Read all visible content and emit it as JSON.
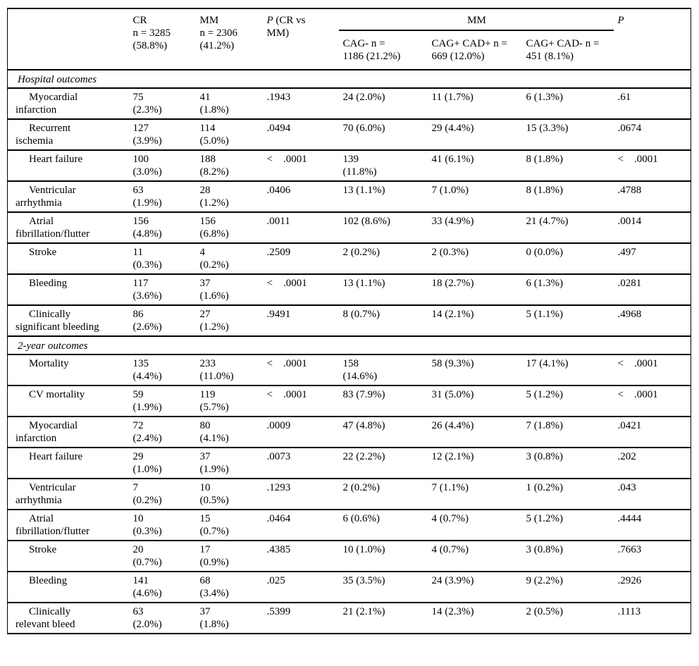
{
  "table": {
    "header": {
      "col_cr": "CR\nn = 3285\n(58.8%)",
      "col_mm": "MM\nn = 2306\n(41.2%)",
      "col_p1_italic": "P",
      "col_p1_rest": " (CR vs\nMM)",
      "group_mm": "MM",
      "col_cag_neg": "CAG- n =\n1186 (21.2%)",
      "col_cag_pos_cad_pos": "CAG+ CAD+ n =\n669 (12.0%)",
      "col_cag_pos_cad_neg": "CAG+ CAD- n =\n451 (8.1%)",
      "col_p2_italic": "P"
    },
    "sections": [
      {
        "title": "Hospital outcomes",
        "rows": [
          {
            "label": "Myocardial\ninfarction",
            "cr": "75\n(2.3%)",
            "mm": "41\n(1.8%)",
            "p_cr_mm": ".1943",
            "cag_neg": "24 (2.0%)",
            "cag_pos_cad_pos": "11 (1.7%)",
            "cag_pos_cad_neg": "6 (1.3%)",
            "p_mm": ".61"
          },
          {
            "label": "Recurrent\nischemia",
            "cr": "127\n(3.9%)",
            "mm": "114\n(5.0%)",
            "p_cr_mm": ".0494",
            "cag_neg": "70 (6.0%)",
            "cag_pos_cad_pos": "29 (4.4%)",
            "cag_pos_cad_neg": "15 (3.3%)",
            "p_mm": ".0674"
          },
          {
            "label": "Heart failure",
            "cr": "100\n(3.0%)",
            "mm": "188\n(8.2%)",
            "p_cr_mm": "<    .0001",
            "cag_neg": "139\n(11.8%)",
            "cag_pos_cad_pos": "41 (6.1%)",
            "cag_pos_cad_neg": "8 (1.8%)",
            "p_mm": "<    .0001"
          },
          {
            "label": "Ventricular\narrhythmia",
            "cr": "63\n(1.9%)",
            "mm": "28\n(1.2%)",
            "p_cr_mm": ".0406",
            "cag_neg": "13 (1.1%)",
            "cag_pos_cad_pos": "7 (1.0%)",
            "cag_pos_cad_neg": "8 (1.8%)",
            "p_mm": ".4788"
          },
          {
            "label": "Atrial\nfibrillation/flutter",
            "cr": "156\n(4.8%)",
            "mm": "156\n(6.8%)",
            "p_cr_mm": ".0011",
            "cag_neg": "102 (8.6%)",
            "cag_pos_cad_pos": "33 (4.9%)",
            "cag_pos_cad_neg": "21 (4.7%)",
            "p_mm": ".0014"
          },
          {
            "label": "Stroke",
            "cr": "11\n(0.3%)",
            "mm": "4\n(0.2%)",
            "p_cr_mm": ".2509",
            "cag_neg": "2 (0.2%)",
            "cag_pos_cad_pos": "2 (0.3%)",
            "cag_pos_cad_neg": "0 (0.0%)",
            "p_mm": ".497"
          },
          {
            "label": "Bleeding",
            "cr": "117\n(3.6%)",
            "mm": "37\n(1.6%)",
            "p_cr_mm": "<    .0001",
            "cag_neg": "13 (1.1%)",
            "cag_pos_cad_pos": "18 (2.7%)",
            "cag_pos_cad_neg": "6 (1.3%)",
            "p_mm": ".0281"
          },
          {
            "label": "Clinically\nsignificant bleeding",
            "cr": "86\n(2.6%)",
            "mm": "27\n(1.2%)",
            "p_cr_mm": ".9491",
            "cag_neg": "8 (0.7%)",
            "cag_pos_cad_pos": "14 (2.1%)",
            "cag_pos_cad_neg": "5 (1.1%)",
            "p_mm": ".4968"
          }
        ]
      },
      {
        "title": "2-year outcomes",
        "rows": [
          {
            "label": "Mortality",
            "cr": "135\n(4.4%)",
            "mm": "233\n(11.0%)",
            "p_cr_mm": "<    .0001",
            "cag_neg": "158\n(14.6%)",
            "cag_pos_cad_pos": "58 (9.3%)",
            "cag_pos_cad_neg": "17 (4.1%)",
            "p_mm": "<    .0001"
          },
          {
            "label": "CV mortality",
            "cr": "59\n(1.9%)",
            "mm": "119\n(5.7%)",
            "p_cr_mm": "<    .0001",
            "cag_neg": "83 (7.9%)",
            "cag_pos_cad_pos": "31 (5.0%)",
            "cag_pos_cad_neg": "5 (1.2%)",
            "p_mm": "<    .0001"
          },
          {
            "label": "Myocardial\ninfarction",
            "cr": "72\n(2.4%)",
            "mm": "80\n(4.1%)",
            "p_cr_mm": ".0009",
            "cag_neg": "47 (4.8%)",
            "cag_pos_cad_pos": "26 (4.4%)",
            "cag_pos_cad_neg": "7 (1.8%)",
            "p_mm": ".0421"
          },
          {
            "label": "Heart failure",
            "cr": "29\n(1.0%)",
            "mm": "37\n(1.9%)",
            "p_cr_mm": ".0073",
            "cag_neg": "22 (2.2%)",
            "cag_pos_cad_pos": "12 (2.1%)",
            "cag_pos_cad_neg": "3 (0.8%)",
            "p_mm": ".202"
          },
          {
            "label": "Ventricular\narrhythmia",
            "cr": "7\n(0.2%)",
            "mm": "10\n(0.5%)",
            "p_cr_mm": ".1293",
            "cag_neg": "2 (0.2%)",
            "cag_pos_cad_pos": "7 (1.1%)",
            "cag_pos_cad_neg": "1 (0.2%)",
            "p_mm": ".043"
          },
          {
            "label": "Atrial\nfibrillation/flutter",
            "cr": "10\n(0.3%)",
            "mm": "15\n(0.7%)",
            "p_cr_mm": ".0464",
            "cag_neg": "6 (0.6%)",
            "cag_pos_cad_pos": "4 (0.7%)",
            "cag_pos_cad_neg": "5 (1.2%)",
            "p_mm": ".4444"
          },
          {
            "label": "Stroke",
            "cr": "20\n(0.7%)",
            "mm": "17\n(0.9%)",
            "p_cr_mm": ".4385",
            "cag_neg": "10 (1.0%)",
            "cag_pos_cad_pos": "4 (0.7%)",
            "cag_pos_cad_neg": "3 (0.8%)",
            "p_mm": ".7663"
          },
          {
            "label": "Bleeding",
            "cr": "141\n(4.6%)",
            "mm": "68\n(3.4%)",
            "p_cr_mm": ".025",
            "cag_neg": "35 (3.5%)",
            "cag_pos_cad_pos": "24 (3.9%)",
            "cag_pos_cad_neg": "9 (2.2%)",
            "p_mm": ".2926"
          },
          {
            "label": "Clinically\nrelevant bleed",
            "cr": "63\n(2.0%)",
            "mm": "37\n(1.8%)",
            "p_cr_mm": ".5399",
            "cag_neg": "21 (2.1%)",
            "cag_pos_cad_pos": "14 (2.3%)",
            "cag_pos_cad_neg": "2 (0.5%)",
            "p_mm": ".1113"
          }
        ]
      }
    ]
  }
}
